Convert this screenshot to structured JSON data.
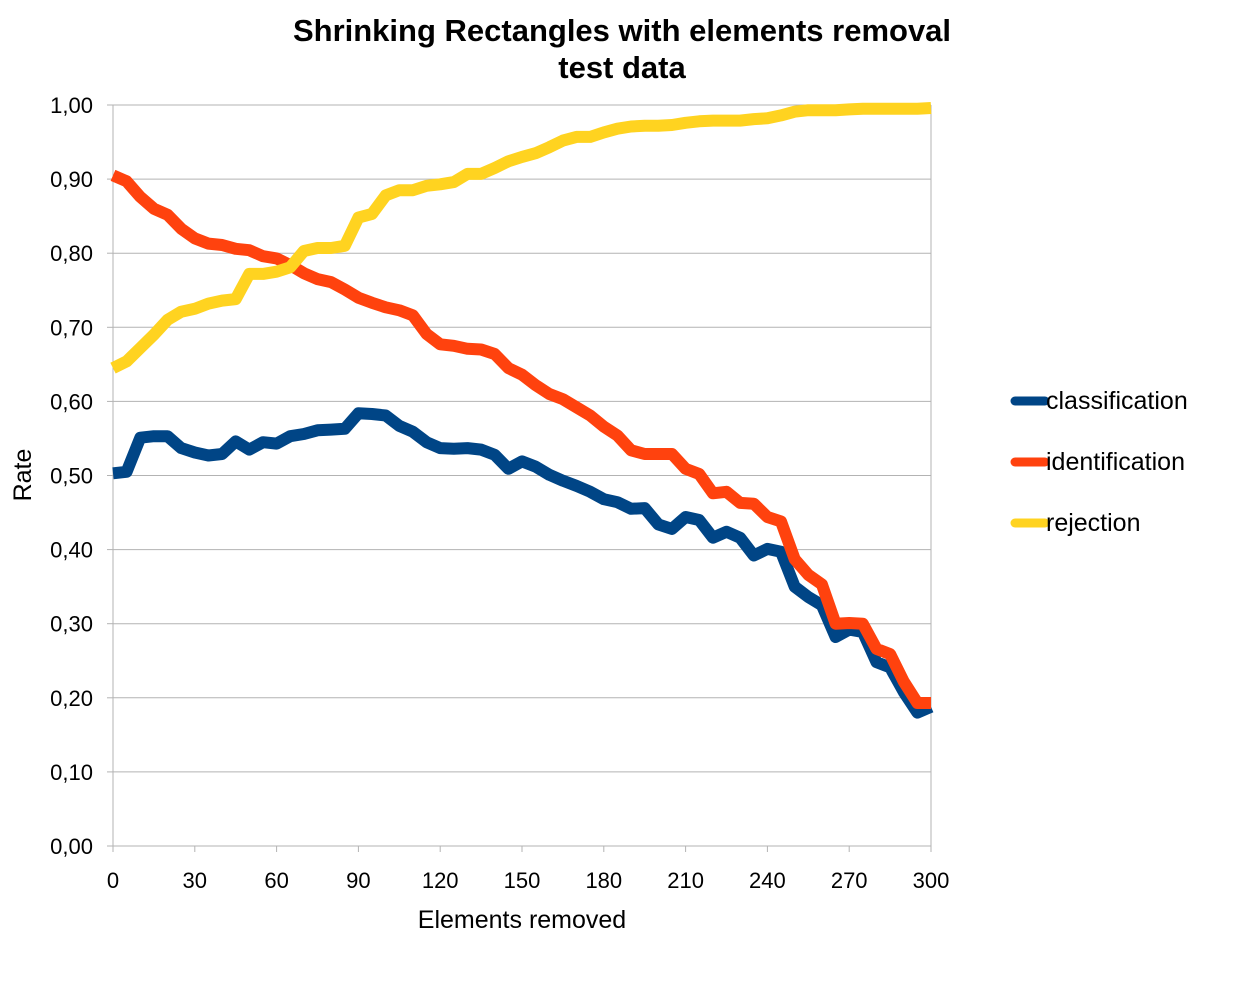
{
  "chart_data": {
    "type": "line",
    "title": "Shrinking Rectangles with elements removal",
    "subtitle": "test data",
    "xlabel": "Elements removed",
    "ylabel": "Rate",
    "xlim": [
      0,
      300
    ],
    "ylim": [
      0,
      1
    ],
    "x_ticks": [
      "0",
      "30",
      "60",
      "90",
      "120",
      "150",
      "180",
      "210",
      "240",
      "270",
      "300"
    ],
    "y_ticks": [
      "0,00",
      "0,10",
      "0,20",
      "0,30",
      "0,40",
      "0,50",
      "0,60",
      "0,70",
      "0,80",
      "0,90",
      "1,00"
    ],
    "grid": "horizontal",
    "legend_position": "right",
    "x": [
      0,
      5,
      10,
      15,
      20,
      25,
      30,
      35,
      40,
      45,
      50,
      55,
      60,
      65,
      70,
      75,
      80,
      85,
      90,
      95,
      100,
      105,
      110,
      115,
      120,
      125,
      130,
      135,
      140,
      145,
      150,
      155,
      160,
      165,
      170,
      175,
      180,
      185,
      190,
      195,
      200,
      205,
      210,
      215,
      220,
      225,
      230,
      235,
      240,
      245,
      250,
      255,
      260,
      265,
      270,
      275,
      280,
      285,
      290,
      295,
      300
    ],
    "series": [
      {
        "name": "classification",
        "color": "#004586",
        "values": [
          0.503,
          0.505,
          0.551,
          0.553,
          0.553,
          0.537,
          0.531,
          0.527,
          0.529,
          0.546,
          0.535,
          0.545,
          0.543,
          0.553,
          0.556,
          0.561,
          0.562,
          0.563,
          0.584,
          0.583,
          0.581,
          0.567,
          0.559,
          0.545,
          0.537,
          0.536,
          0.537,
          0.535,
          0.528,
          0.509,
          0.519,
          0.512,
          0.501,
          0.493,
          0.486,
          0.478,
          0.468,
          0.464,
          0.455,
          0.456,
          0.434,
          0.428,
          0.444,
          0.44,
          0.416,
          0.424,
          0.416,
          0.392,
          0.401,
          0.397,
          0.35,
          0.336,
          0.325,
          0.282,
          0.292,
          0.289,
          0.248,
          0.241,
          0.208,
          0.18,
          0.188
        ]
      },
      {
        "name": "identification",
        "color": "#ff420e",
        "values": [
          0.905,
          0.897,
          0.876,
          0.86,
          0.852,
          0.833,
          0.82,
          0.813,
          0.811,
          0.806,
          0.804,
          0.796,
          0.793,
          0.784,
          0.773,
          0.765,
          0.761,
          0.751,
          0.74,
          0.733,
          0.727,
          0.723,
          0.716,
          0.691,
          0.677,
          0.675,
          0.671,
          0.67,
          0.664,
          0.645,
          0.636,
          0.622,
          0.61,
          0.603,
          0.592,
          0.581,
          0.566,
          0.554,
          0.534,
          0.529,
          0.529,
          0.529,
          0.509,
          0.502,
          0.476,
          0.478,
          0.463,
          0.462,
          0.444,
          0.438,
          0.387,
          0.366,
          0.353,
          0.3,
          0.301,
          0.3,
          0.266,
          0.259,
          0.222,
          0.193,
          0.193
        ]
      },
      {
        "name": "rejection",
        "color": "#ffd320",
        "values": [
          0.645,
          0.654,
          0.672,
          0.69,
          0.71,
          0.721,
          0.725,
          0.732,
          0.736,
          0.738,
          0.772,
          0.772,
          0.775,
          0.781,
          0.803,
          0.807,
          0.807,
          0.81,
          0.848,
          0.853,
          0.878,
          0.885,
          0.885,
          0.891,
          0.893,
          0.896,
          0.907,
          0.907,
          0.915,
          0.924,
          0.93,
          0.935,
          0.943,
          0.952,
          0.957,
          0.957,
          0.963,
          0.968,
          0.971,
          0.972,
          0.972,
          0.973,
          0.976,
          0.978,
          0.979,
          0.979,
          0.979,
          0.981,
          0.982,
          0.986,
          0.991,
          0.993,
          0.993,
          0.993,
          0.994,
          0.995,
          0.995,
          0.995,
          0.995,
          0.995,
          0.996
        ]
      }
    ]
  }
}
